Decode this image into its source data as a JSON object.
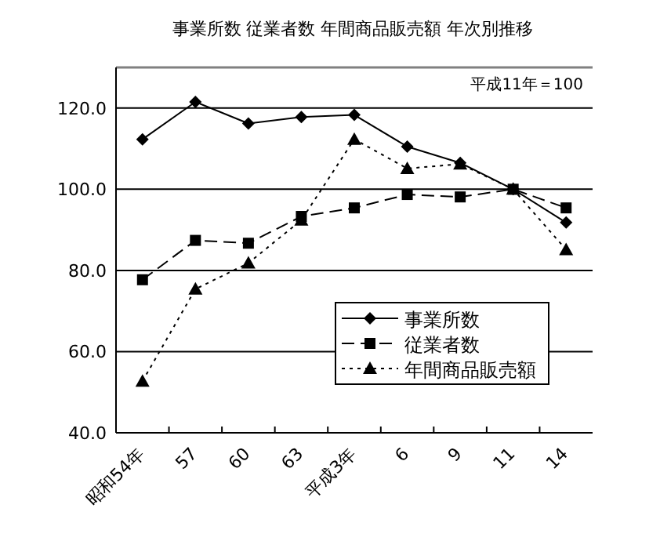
{
  "chart_data": {
    "type": "line",
    "title": "事業所数  従業者数  年間商品販売額  年次別推移",
    "categories": [
      "昭和54年",
      "57",
      "60",
      "63",
      "平成3年",
      "6",
      "9",
      "11",
      "14"
    ],
    "series": [
      {
        "name": "事業所数",
        "color": "#000000",
        "marker": "diamond",
        "line_style": "solid",
        "values": [
          112.3,
          121.5,
          116.2,
          117.8,
          118.3,
          110.5,
          106.5,
          100,
          91.8
        ]
      },
      {
        "name": "従業者数",
        "color": "#000000",
        "marker": "square",
        "line_style": "dashed",
        "values": [
          77.7,
          87.4,
          86.7,
          93.3,
          95.4,
          98.7,
          98.1,
          100,
          95.4
        ]
      },
      {
        "name": "年間商品販売額",
        "color": "#000000",
        "marker": "triangle",
        "line_style": "dotted",
        "values": [
          52.7,
          75.4,
          81.8,
          92.4,
          112.3,
          105.1,
          106.2,
          100,
          85.1
        ]
      }
    ],
    "ylim": [
      40,
      130
    ],
    "yticks": [
      {
        "value": 40,
        "label": "40.0"
      },
      {
        "value": 60,
        "label": "60.0"
      },
      {
        "value": 80,
        "label": "80.0"
      },
      {
        "value": 100,
        "label": "100.0"
      },
      {
        "value": 120,
        "label": "120.0"
      }
    ],
    "grid": "y",
    "legend": "bottom right",
    "annotations": [
      "平成11年＝100"
    ]
  }
}
